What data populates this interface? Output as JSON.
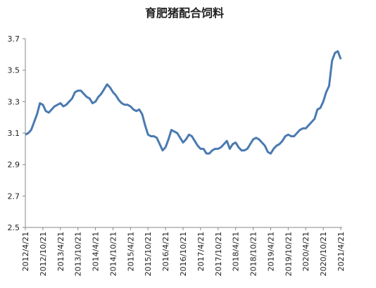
{
  "chart_data": {
    "type": "line",
    "title": "育肥猪配合饲料",
    "categories": [
      "2012/4/21",
      null,
      null,
      null,
      null,
      null,
      "2012/10/21",
      null,
      null,
      null,
      null,
      null,
      "2013/4/21",
      null,
      null,
      null,
      null,
      null,
      "2013/10/21",
      null,
      null,
      null,
      null,
      null,
      "2014/4/21",
      null,
      null,
      null,
      null,
      null,
      "2014/10/21",
      null,
      null,
      null,
      null,
      null,
      "2015/4/21",
      null,
      null,
      null,
      null,
      null,
      "2015/10/21",
      null,
      null,
      null,
      null,
      null,
      "2016/4/21",
      null,
      null,
      null,
      null,
      null,
      "2016/10/21",
      null,
      null,
      null,
      null,
      null,
      "2017/4/21",
      null,
      null,
      null,
      null,
      null,
      "2017/10/21",
      null,
      null,
      null,
      null,
      null,
      "2018/4/21",
      null,
      null,
      null,
      null,
      null,
      "2018/10/21",
      null,
      null,
      null,
      null,
      null,
      "2019/4/21",
      null,
      null,
      null,
      null,
      null,
      "2019/10/21",
      null,
      null,
      null,
      null,
      null,
      "2020/4/21",
      null,
      null,
      null,
      null,
      null,
      "2020/10/21",
      null,
      null,
      null,
      null,
      null,
      "2021/4/21"
    ],
    "values": [
      3.09,
      3.1,
      3.12,
      3.17,
      3.22,
      3.29,
      3.28,
      3.24,
      3.23,
      3.25,
      3.27,
      3.28,
      3.29,
      3.27,
      3.28,
      3.3,
      3.32,
      3.36,
      3.37,
      3.37,
      3.35,
      3.33,
      3.32,
      3.29,
      3.3,
      3.33,
      3.35,
      3.38,
      3.41,
      3.39,
      3.36,
      3.34,
      3.31,
      3.29,
      3.28,
      3.28,
      3.27,
      3.25,
      3.24,
      3.25,
      3.22,
      3.15,
      3.09,
      3.08,
      3.08,
      3.07,
      3.03,
      2.99,
      3.01,
      3.06,
      3.12,
      3.11,
      3.1,
      3.07,
      3.04,
      3.06,
      3.09,
      3.08,
      3.05,
      3.02,
      3.0,
      3.0,
      2.97,
      2.97,
      2.99,
      3.0,
      3.0,
      3.01,
      3.03,
      3.05,
      3.0,
      3.03,
      3.04,
      3.01,
      2.99,
      2.99,
      3.0,
      3.03,
      3.06,
      3.07,
      3.06,
      3.04,
      3.02,
      2.98,
      2.97,
      3.0,
      3.02,
      3.03,
      3.05,
      3.08,
      3.09,
      3.08,
      3.08,
      3.1,
      3.12,
      3.13,
      3.13,
      3.15,
      3.17,
      3.19,
      3.25,
      3.26,
      3.3,
      3.36,
      3.4,
      3.56,
      3.61,
      3.62,
      3.57
    ],
    "color": "#4a7ab0",
    "ylim": [
      2.5,
      3.7
    ],
    "yticks": [
      2.5,
      2.7,
      2.9,
      3.1,
      3.3,
      3.5,
      3.7
    ],
    "grid": false
  }
}
